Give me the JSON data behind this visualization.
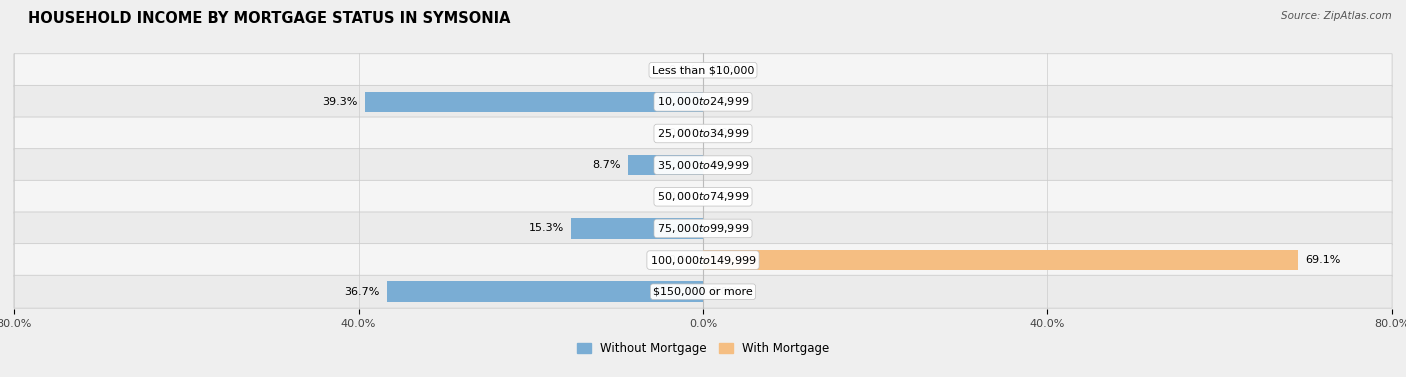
{
  "title": "HOUSEHOLD INCOME BY MORTGAGE STATUS IN SYMSONIA",
  "source": "Source: ZipAtlas.com",
  "categories": [
    "Less than $10,000",
    "$10,000 to $24,999",
    "$25,000 to $34,999",
    "$35,000 to $49,999",
    "$50,000 to $74,999",
    "$75,000 to $99,999",
    "$100,000 to $149,999",
    "$150,000 or more"
  ],
  "without_mortgage": [
    0.0,
    39.3,
    0.0,
    8.7,
    0.0,
    15.3,
    0.0,
    36.7
  ],
  "with_mortgage": [
    0.0,
    0.0,
    0.0,
    0.0,
    0.0,
    0.0,
    69.1,
    0.0
  ],
  "color_without": "#7aadd4",
  "color_with": "#f5be82",
  "xlim_left": -80,
  "xlim_right": 80,
  "xtick_positions": [
    -80,
    -40,
    0,
    40,
    80
  ],
  "xtick_labels": [
    "80.0%",
    "40.0%",
    "0.0%",
    "40.0%",
    "80.0%"
  ],
  "bg_color": "#efefef",
  "row_bg_even": "#f5f5f5",
  "row_bg_odd": "#ebebeb",
  "title_fontsize": 10.5,
  "label_fontsize": 8,
  "tick_fontsize": 8,
  "source_fontsize": 7.5
}
